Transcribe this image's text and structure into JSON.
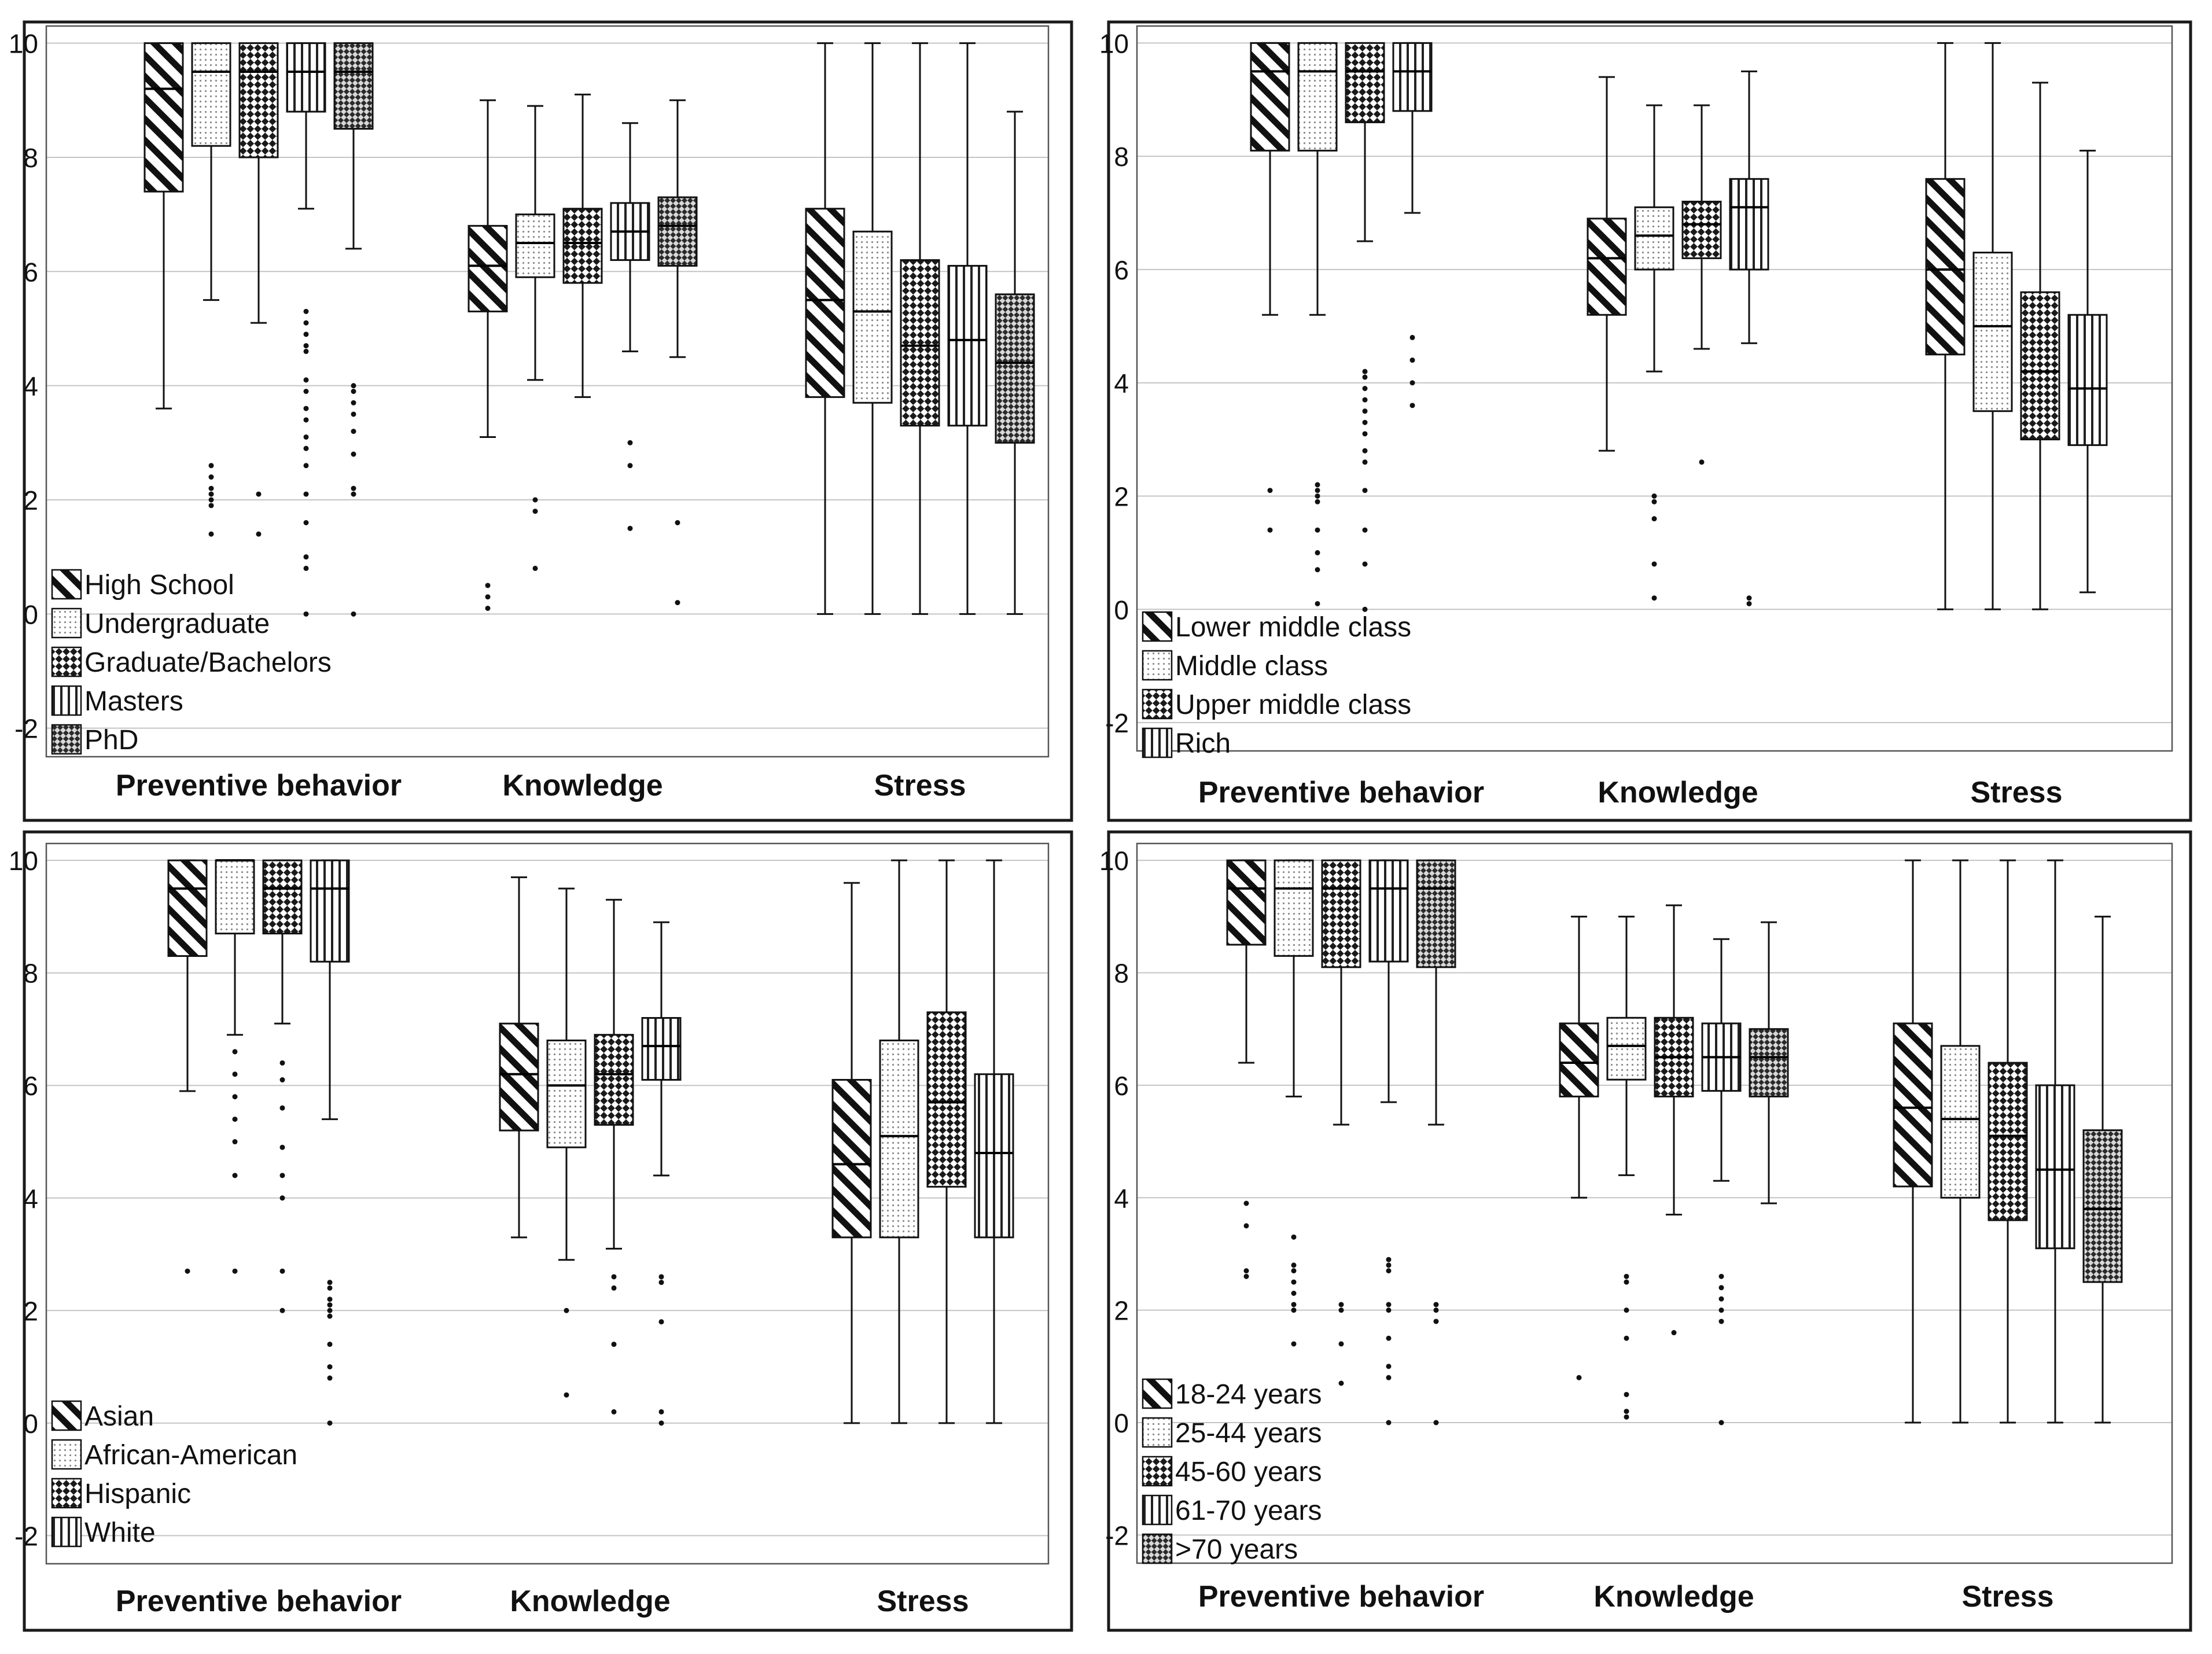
{
  "chart_data": [
    {
      "type": "boxplot",
      "title": "",
      "xlabel": "",
      "ylabel": "",
      "ylim": [
        -2.5,
        10.3
      ],
      "y_ticks": [
        "10",
        "8",
        "6",
        "4",
        "2",
        "0",
        "-2"
      ],
      "grid": true,
      "legend": "bottom-left",
      "groups": [
        "Preventive behavior",
        "Knowledge",
        "Stress"
      ],
      "series": [
        {
          "name": "High School",
          "pattern": "diag",
          "boxes": [
            {
              "min": 3.6,
              "q1": 7.4,
              "median": 9.2,
              "q3": 10,
              "max": 10,
              "outliers": []
            },
            {
              "min": 3.1,
              "q1": 5.3,
              "median": 6.1,
              "q3": 6.8,
              "max": 9.0,
              "outliers": [
                0.5,
                0.3,
                0.1
              ]
            },
            {
              "min": 0,
              "q1": 3.8,
              "median": 5.5,
              "q3": 7.1,
              "max": 10,
              "outliers": []
            }
          ]
        },
        {
          "name": "Undergraduate",
          "pattern": "dots",
          "boxes": [
            {
              "min": 5.5,
              "q1": 8.2,
              "median": 9.5,
              "q3": 10,
              "max": 10,
              "outliers": [
                2.6,
                2.4,
                2.2,
                2.1,
                2.0,
                1.9,
                1.4
              ]
            },
            {
              "min": 4.1,
              "q1": 5.9,
              "median": 6.5,
              "q3": 7.0,
              "max": 8.9,
              "outliers": [
                2.0,
                1.8,
                0.8
              ]
            },
            {
              "min": 0,
              "q1": 3.7,
              "median": 5.3,
              "q3": 6.7,
              "max": 10,
              "outliers": []
            }
          ]
        },
        {
          "name": "Graduate/Bachelors",
          "pattern": "check",
          "boxes": [
            {
              "min": 5.1,
              "q1": 8.0,
              "median": 9.5,
              "q3": 10,
              "max": 10,
              "outliers": [
                2.1,
                1.4
              ]
            },
            {
              "min": 3.8,
              "q1": 5.8,
              "median": 6.5,
              "q3": 7.1,
              "max": 9.1,
              "outliers": []
            },
            {
              "min": 0,
              "q1": 3.3,
              "median": 4.7,
              "q3": 6.2,
              "max": 10,
              "outliers": []
            }
          ]
        },
        {
          "name": "Masters",
          "pattern": "vert",
          "boxes": [
            {
              "min": 7.1,
              "q1": 8.8,
              "median": 9.5,
              "q3": 10,
              "max": 10,
              "outliers": [
                5.3,
                5.1,
                4.9,
                4.7,
                4.6,
                4.1,
                3.9,
                3.6,
                3.4,
                3.1,
                2.9,
                2.6,
                2.1,
                1.6,
                1.0,
                0.8,
                0.0
              ]
            },
            {
              "min": 4.6,
              "q1": 6.2,
              "median": 6.7,
              "q3": 7.2,
              "max": 8.6,
              "outliers": [
                3.0,
                2.6,
                1.5
              ]
            },
            {
              "min": 0,
              "q1": 3.3,
              "median": 4.8,
              "q3": 6.1,
              "max": 10,
              "outliers": []
            }
          ]
        },
        {
          "name": "PhD",
          "pattern": "dense",
          "boxes": [
            {
              "min": 6.4,
              "q1": 8.5,
              "median": 9.5,
              "q3": 10,
              "max": 10,
              "outliers": [
                4.0,
                3.9,
                3.7,
                3.5,
                3.2,
                2.8,
                2.2,
                2.1,
                0.0
              ]
            },
            {
              "min": 4.5,
              "q1": 6.1,
              "median": 6.8,
              "q3": 7.3,
              "max": 9.0,
              "outliers": [
                1.6,
                0.2
              ]
            },
            {
              "min": 0,
              "q1": 3.0,
              "median": 4.4,
              "q3": 5.6,
              "max": 8.8,
              "outliers": []
            }
          ]
        }
      ]
    },
    {
      "type": "boxplot",
      "title": "",
      "xlabel": "",
      "ylabel": "",
      "ylim": [
        -2.5,
        10.3
      ],
      "y_ticks": [
        "10",
        "8",
        "6",
        "4",
        "2",
        "0",
        "-2"
      ],
      "grid": true,
      "legend": "bottom-left",
      "groups": [
        "Preventive behavior",
        "Knowledge",
        "Stress"
      ],
      "series": [
        {
          "name": "Lower middle class",
          "pattern": "diag",
          "boxes": [
            {
              "min": 5.2,
              "q1": 8.1,
              "median": 9.5,
              "q3": 10,
              "max": 10,
              "outliers": [
                2.1,
                1.4
              ]
            },
            {
              "min": 2.8,
              "q1": 5.2,
              "median": 6.2,
              "q3": 6.9,
              "max": 9.4,
              "outliers": []
            },
            {
              "min": 0,
              "q1": 4.5,
              "median": 6.0,
              "q3": 7.6,
              "max": 10,
              "outliers": []
            }
          ]
        },
        {
          "name": "Middle class",
          "pattern": "dots",
          "boxes": [
            {
              "min": 5.2,
              "q1": 8.1,
              "median": 9.5,
              "q3": 10,
              "max": 10,
              "outliers": [
                2.2,
                2.1,
                2.0,
                1.9,
                1.4,
                1.0,
                0.7,
                0.1
              ]
            },
            {
              "min": 4.2,
              "q1": 6.0,
              "median": 6.6,
              "q3": 7.1,
              "max": 8.9,
              "outliers": [
                2.0,
                1.9,
                1.6,
                0.8,
                0.2
              ]
            },
            {
              "min": 0,
              "q1": 3.5,
              "median": 5.0,
              "q3": 6.3,
              "max": 10,
              "outliers": []
            }
          ]
        },
        {
          "name": "Upper middle class",
          "pattern": "check",
          "boxes": [
            {
              "min": 6.5,
              "q1": 8.6,
              "median": 9.5,
              "q3": 10,
              "max": 10,
              "outliers": [
                4.2,
                4.1,
                3.9,
                3.7,
                3.5,
                3.3,
                3.1,
                2.8,
                2.6,
                2.1,
                1.4,
                0.8,
                0.0
              ]
            },
            {
              "min": 4.6,
              "q1": 6.2,
              "median": 6.8,
              "q3": 7.2,
              "max": 8.9,
              "outliers": [
                2.6
              ]
            },
            {
              "min": 0,
              "q1": 3.0,
              "median": 4.2,
              "q3": 5.6,
              "max": 9.3,
              "outliers": []
            }
          ]
        },
        {
          "name": "Rich",
          "pattern": "vert",
          "boxes": [
            {
              "min": 7.0,
              "q1": 8.8,
              "median": 9.5,
              "q3": 10,
              "max": 10,
              "outliers": [
                4.8,
                4.4,
                4.0,
                3.6
              ]
            },
            {
              "min": 4.7,
              "q1": 6.0,
              "median": 7.1,
              "q3": 7.6,
              "max": 9.5,
              "outliers": [
                0.2,
                0.1
              ]
            },
            {
              "min": 0.3,
              "q1": 2.9,
              "median": 3.9,
              "q3": 5.2,
              "max": 8.1,
              "outliers": []
            }
          ]
        }
      ]
    },
    {
      "type": "boxplot",
      "title": "",
      "xlabel": "",
      "ylabel": "",
      "ylim": [
        -2.5,
        10.3
      ],
      "y_ticks": [
        "10",
        "8",
        "6",
        "4",
        "2",
        "0",
        "-2"
      ],
      "grid": true,
      "legend": "bottom-left",
      "groups": [
        "Preventive behavior",
        "Knowledge",
        "Stress"
      ],
      "series": [
        {
          "name": "Asian",
          "pattern": "diag",
          "boxes": [
            {
              "min": 5.9,
              "q1": 8.3,
              "median": 9.5,
              "q3": 10,
              "max": 10,
              "outliers": [
                2.7
              ]
            },
            {
              "min": 3.3,
              "q1": 5.2,
              "median": 6.2,
              "q3": 7.1,
              "max": 9.7,
              "outliers": []
            },
            {
              "min": 0,
              "q1": 3.3,
              "median": 4.6,
              "q3": 6.1,
              "max": 9.6,
              "outliers": []
            }
          ]
        },
        {
          "name": "African-American",
          "pattern": "dots",
          "boxes": [
            {
              "min": 6.9,
              "q1": 8.7,
              "median": 10,
              "q3": 10,
              "max": 10,
              "outliers": [
                6.6,
                6.2,
                5.8,
                5.4,
                5.0,
                4.4,
                2.7
              ]
            },
            {
              "min": 2.9,
              "q1": 4.9,
              "median": 6.0,
              "q3": 6.8,
              "max": 9.5,
              "outliers": [
                2.0,
                0.5
              ]
            },
            {
              "min": 0,
              "q1": 3.3,
              "median": 5.1,
              "q3": 6.8,
              "max": 10,
              "outliers": []
            }
          ]
        },
        {
          "name": "Hispanic",
          "pattern": "check",
          "boxes": [
            {
              "min": 7.1,
              "q1": 8.7,
              "median": 9.5,
              "q3": 10,
              "max": 10,
              "outliers": [
                6.4,
                6.1,
                5.6,
                4.9,
                4.4,
                4.0,
                2.7,
                2.0
              ]
            },
            {
              "min": 3.1,
              "q1": 5.3,
              "median": 6.2,
              "q3": 6.9,
              "max": 9.3,
              "outliers": [
                2.6,
                2.4,
                1.4,
                0.2
              ]
            },
            {
              "min": 0,
              "q1": 4.2,
              "median": 5.7,
              "q3": 7.3,
              "max": 10,
              "outliers": []
            }
          ]
        },
        {
          "name": "White",
          "pattern": "vert",
          "boxes": [
            {
              "min": 5.4,
              "q1": 8.2,
              "median": 9.5,
              "q3": 10,
              "max": 10,
              "outliers": [
                2.5,
                2.4,
                2.2,
                2.1,
                2.0,
                1.9,
                1.4,
                1.0,
                0.8,
                0.0
              ]
            },
            {
              "min": 4.4,
              "q1": 6.1,
              "median": 6.7,
              "q3": 7.2,
              "max": 8.9,
              "outliers": [
                2.6,
                2.5,
                1.8,
                0.2,
                0.0
              ]
            },
            {
              "min": 0,
              "q1": 3.3,
              "median": 4.8,
              "q3": 6.2,
              "max": 10,
              "outliers": []
            }
          ]
        }
      ]
    },
    {
      "type": "boxplot",
      "title": "",
      "xlabel": "",
      "ylabel": "",
      "ylim": [
        -2.5,
        10.3
      ],
      "y_ticks": [
        "10",
        "8",
        "6",
        "4",
        "2",
        "0",
        "-2"
      ],
      "grid": true,
      "legend": "bottom-left",
      "groups": [
        "Preventive behavior",
        "Knowledge",
        "Stress"
      ],
      "series": [
        {
          "name": "18-24 years",
          "pattern": "diag",
          "boxes": [
            {
              "min": 6.4,
              "q1": 8.5,
              "median": 9.5,
              "q3": 10,
              "max": 10,
              "outliers": [
                3.9,
                3.5,
                2.7,
                2.6
              ]
            },
            {
              "min": 4.0,
              "q1": 5.8,
              "median": 6.4,
              "q3": 7.1,
              "max": 9.0,
              "outliers": [
                0.8
              ]
            },
            {
              "min": 0,
              "q1": 4.2,
              "median": 5.6,
              "q3": 7.1,
              "max": 10,
              "outliers": []
            }
          ]
        },
        {
          "name": "25-44 years",
          "pattern": "dots",
          "boxes": [
            {
              "min": 5.8,
              "q1": 8.3,
              "median": 9.5,
              "q3": 10,
              "max": 10,
              "outliers": [
                3.3,
                2.8,
                2.7,
                2.5,
                2.3,
                2.1,
                2.0,
                1.4
              ]
            },
            {
              "min": 4.4,
              "q1": 6.1,
              "median": 6.7,
              "q3": 7.2,
              "max": 9.0,
              "outliers": [
                2.6,
                2.5,
                2.0,
                1.5,
                0.5,
                0.2,
                0.1
              ]
            },
            {
              "min": 0,
              "q1": 4.0,
              "median": 5.4,
              "q3": 6.7,
              "max": 10,
              "outliers": []
            }
          ]
        },
        {
          "name": "45-60 years",
          "pattern": "check",
          "boxes": [
            {
              "min": 5.3,
              "q1": 8.1,
              "median": 9.5,
              "q3": 10,
              "max": 10,
              "outliers": [
                2.1,
                2.0,
                1.4,
                0.7
              ]
            },
            {
              "min": 3.7,
              "q1": 5.8,
              "median": 6.5,
              "q3": 7.2,
              "max": 9.2,
              "outliers": [
                1.6
              ]
            },
            {
              "min": 0,
              "q1": 3.6,
              "median": 5.1,
              "q3": 6.4,
              "max": 10,
              "outliers": []
            }
          ]
        },
        {
          "name": "61-70 years",
          "pattern": "vert",
          "boxes": [
            {
              "min": 5.7,
              "q1": 8.2,
              "median": 9.5,
              "q3": 10,
              "max": 10,
              "outliers": [
                2.9,
                2.8,
                2.7,
                2.1,
                2.0,
                1.5,
                1.0,
                0.8,
                0.0
              ]
            },
            {
              "min": 4.3,
              "q1": 5.9,
              "median": 6.5,
              "q3": 7.1,
              "max": 8.6,
              "outliers": [
                2.6,
                2.4,
                2.2,
                2.0,
                1.8,
                0.0
              ]
            },
            {
              "min": 0,
              "q1": 3.1,
              "median": 4.5,
              "q3": 6.0,
              "max": 10,
              "outliers": []
            }
          ]
        },
        {
          "name": ">70 years",
          "pattern": "dense",
          "boxes": [
            {
              "min": 5.3,
              "q1": 8.1,
              "median": 9.5,
              "q3": 10,
              "max": 10,
              "outliers": [
                2.1,
                2.0,
                1.8,
                0.0
              ]
            },
            {
              "min": 3.9,
              "q1": 5.8,
              "median": 6.5,
              "q3": 7.0,
              "max": 8.9,
              "outliers": []
            },
            {
              "min": 0,
              "q1": 2.5,
              "median": 3.8,
              "q3": 5.2,
              "max": 9.0,
              "outliers": []
            }
          ]
        }
      ]
    }
  ]
}
